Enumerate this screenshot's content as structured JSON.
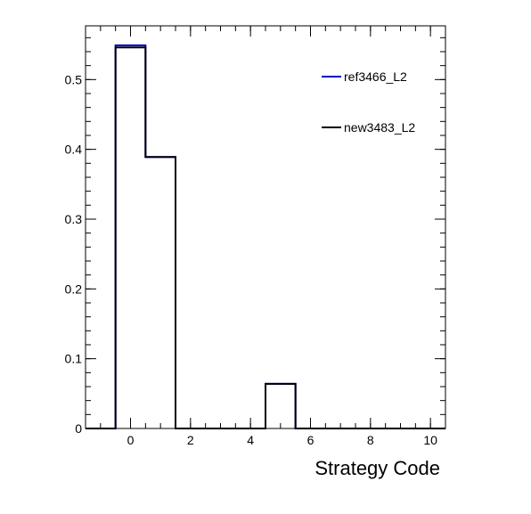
{
  "chart_data": {
    "type": "bar",
    "style": "step-histogram",
    "title": "",
    "xlabel": "Strategy Code",
    "ylabel": "",
    "xlim": [
      -1.5,
      10.5
    ],
    "ylim": [
      0,
      0.577
    ],
    "bin_width": 1,
    "x_ticks": [
      0,
      2,
      4,
      6,
      8,
      10
    ],
    "y_ticks": [
      0,
      0.1,
      0.2,
      0.3,
      0.4,
      0.5
    ],
    "x_tick_labels": [
      "0",
      "2",
      "4",
      "6",
      "8",
      "10"
    ],
    "y_tick_labels": [
      "0",
      "0.1",
      "0.2",
      "0.3",
      "0.4",
      "0.5"
    ],
    "grid": false,
    "legend_position": "top-right",
    "bin_centers": [
      -1,
      0,
      1,
      2,
      3,
      4,
      5,
      6,
      7,
      8,
      9,
      10
    ],
    "series": [
      {
        "name": "ref3466_L2",
        "color": "#0000cc",
        "values": [
          0,
          0.549,
          0.389,
          0,
          0,
          0,
          0.064,
          0,
          0,
          0,
          0,
          0
        ]
      },
      {
        "name": "new3483_L2",
        "color": "#000000",
        "values": [
          0,
          0.546,
          0.389,
          0,
          0,
          0,
          0.064,
          0,
          0,
          0,
          0,
          0
        ]
      }
    ]
  }
}
